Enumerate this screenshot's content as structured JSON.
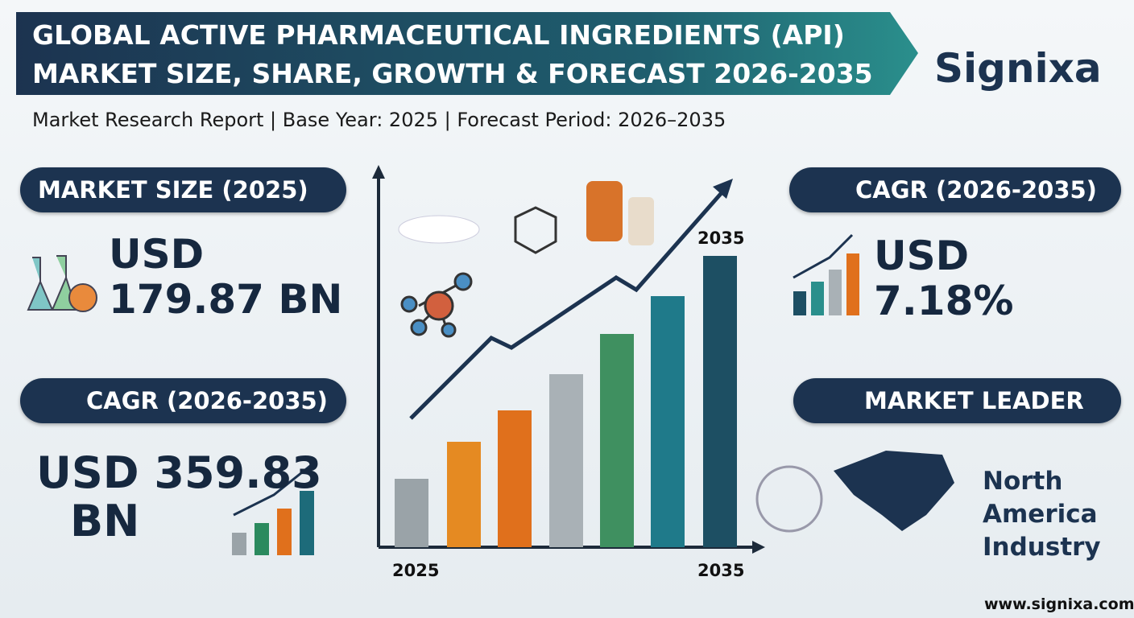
{
  "header": {
    "title_lines": [
      "GLOBAL ACTIVE PHARMACEUTICAL INGREDIENTS (API)",
      "MARKET SIZE, SHARE, GROWTH & FORECAST 2026-2035"
    ],
    "subtitle": "Market Research Report | Base Year: 2025 | Forecast Period: 2026–2035",
    "brand": "Signixa"
  },
  "market_size": {
    "label": "MARKET SIZE (2025)",
    "value_lines": [
      "USD",
      "179.87 BN"
    ]
  },
  "cagr_left": {
    "label": "CAGR (2026-2035)",
    "value_lines": [
      "USD 359.83",
      "BN"
    ]
  },
  "cagr_right": {
    "label": "CAGR (2026-2035)",
    "value_lines": [
      "USD",
      "7.18%"
    ]
  },
  "market_leader": {
    "label": "MARKET LEADER",
    "value_lines": [
      "North",
      "America",
      "Industry"
    ]
  },
  "chart": {
    "top_label": "2035",
    "start_label": "2025",
    "end_label": "2035"
  },
  "footer": {
    "website": "www.signixa.com"
  }
}
